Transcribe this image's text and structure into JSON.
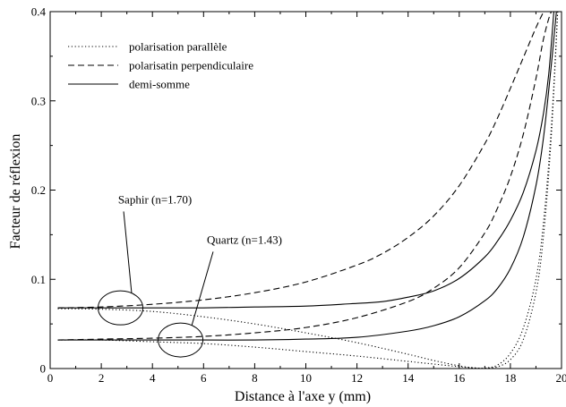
{
  "chart_data": {
    "type": "line",
    "title": "",
    "xlabel": "Distance à l'axe y (mm)",
    "ylabel": "Facteur de réflexion",
    "xlim": [
      0,
      20
    ],
    "ylim": [
      0,
      0.4
    ],
    "grid": false,
    "legend_position": "top-left",
    "x_ticks": [
      0,
      2,
      4,
      6,
      8,
      10,
      12,
      14,
      16,
      18,
      20
    ],
    "x_tick_labels": [
      "0",
      "2",
      "4",
      "6",
      "8",
      "10",
      "12",
      "14",
      "16",
      "18",
      "20"
    ],
    "y_ticks": [
      0,
      0.1,
      0.2,
      0.3,
      0.4
    ],
    "y_tick_labels": [
      "0",
      "0.1",
      "0.2",
      "0.3",
      "0.4"
    ],
    "legend": [
      {
        "label": "polarisation parallèle",
        "style": "dotted"
      },
      {
        "label": "polarisatin perpendiculaire",
        "style": "dashed"
      },
      {
        "label": "demi-somme",
        "style": "solid"
      }
    ],
    "series": [
      {
        "material": "saphir",
        "style": "dotted",
        "x": [
          0.3,
          2,
          4,
          6,
          8,
          10,
          12,
          14,
          15,
          16,
          16.5,
          17,
          17.5,
          18,
          18.5,
          19,
          19.3,
          19.6,
          19.85
        ],
        "y": [
          0.067,
          0.0665,
          0.064,
          0.058,
          0.05,
          0.04,
          0.029,
          0.016,
          0.009,
          0.003,
          0.001,
          0.0005,
          0.004,
          0.017,
          0.045,
          0.1,
          0.165,
          0.27,
          0.4
        ]
      },
      {
        "material": "saphir",
        "style": "dashed",
        "x": [
          0.3,
          2,
          4,
          6,
          8,
          10,
          12,
          13,
          14,
          15,
          16,
          17,
          17.5,
          18,
          18.5,
          19,
          19.3
        ],
        "y": [
          0.068,
          0.069,
          0.072,
          0.077,
          0.085,
          0.097,
          0.116,
          0.129,
          0.147,
          0.171,
          0.205,
          0.252,
          0.281,
          0.314,
          0.348,
          0.382,
          0.4
        ]
      },
      {
        "material": "saphir",
        "style": "solid",
        "x": [
          0.3,
          2,
          4,
          6,
          8,
          10,
          12,
          13,
          14,
          15,
          16,
          17,
          17.5,
          18,
          18.5,
          19,
          19.3,
          19.5,
          19.7
        ],
        "y": [
          0.068,
          0.068,
          0.068,
          0.068,
          0.069,
          0.07,
          0.073,
          0.075,
          0.08,
          0.087,
          0.101,
          0.125,
          0.143,
          0.166,
          0.197,
          0.244,
          0.287,
          0.33,
          0.4
        ]
      },
      {
        "material": "quartz",
        "style": "dotted",
        "x": [
          0.3,
          2,
          4,
          6,
          8,
          10,
          12,
          14,
          15,
          16,
          16.5,
          17,
          17.5,
          18,
          18.5,
          19,
          19.3,
          19.6,
          19.85
        ],
        "y": [
          0.032,
          0.032,
          0.03,
          0.028,
          0.024,
          0.019,
          0.014,
          0.008,
          0.005,
          0.002,
          0.0008,
          0.0003,
          0.002,
          0.01,
          0.032,
          0.085,
          0.15,
          0.26,
          0.4
        ]
      },
      {
        "material": "quartz",
        "style": "dashed",
        "x": [
          0.3,
          2,
          4,
          6,
          8,
          10,
          12,
          14,
          15,
          16,
          17,
          17.5,
          18,
          18.5,
          19,
          19.3,
          19.6,
          19.8
        ],
        "y": [
          0.032,
          0.033,
          0.034,
          0.036,
          0.04,
          0.046,
          0.057,
          0.075,
          0.09,
          0.113,
          0.152,
          0.18,
          0.215,
          0.262,
          0.325,
          0.37,
          0.4,
          0.4
        ]
      },
      {
        "material": "quartz",
        "style": "solid",
        "x": [
          0.3,
          2,
          4,
          6,
          8,
          10,
          12,
          14,
          15,
          16,
          17,
          17.5,
          18,
          18.5,
          19,
          19.3,
          19.6,
          19.8
        ],
        "y": [
          0.032,
          0.032,
          0.032,
          0.032,
          0.032,
          0.033,
          0.035,
          0.042,
          0.048,
          0.058,
          0.076,
          0.09,
          0.112,
          0.147,
          0.205,
          0.26,
          0.34,
          0.4
        ]
      }
    ],
    "annotations": [
      {
        "text": "Saphir (n=1.70)",
        "ellipse_center": [
          2.75,
          0.068
        ],
        "label_at": [
          4.1,
          0.185
        ]
      },
      {
        "text": "Quartz (n=1.43)",
        "ellipse_center": [
          5.1,
          0.032
        ],
        "label_at": [
          7.6,
          0.14
        ]
      }
    ]
  }
}
